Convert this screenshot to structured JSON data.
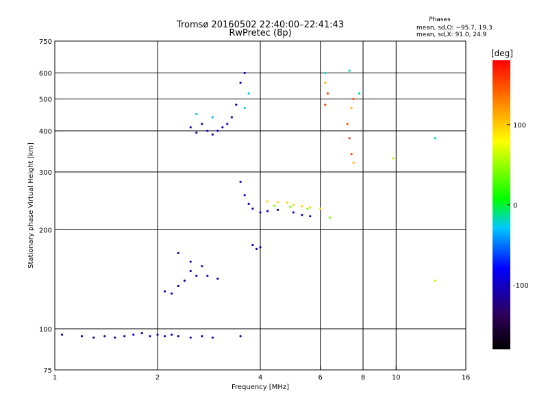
{
  "chart_data": {
    "type": "scatter",
    "title": "Tromsø 20160502 22:40:00–22:41:43",
    "subtitle": "RwPretec (8p)",
    "xlabel": "Frequency [MHz]",
    "ylabel": "Stationary phase Virtual Height [km]",
    "x_scale": "log",
    "y_scale": "log",
    "xlim": [
      1,
      16
    ],
    "ylim": [
      75,
      750
    ],
    "x_ticks": [
      1,
      2,
      4,
      6,
      8,
      10,
      16
    ],
    "x_tick_labels": [
      "1",
      "2",
      "4",
      "6",
      "8",
      "10",
      "16"
    ],
    "y_ticks": [
      75,
      100,
      200,
      300,
      400,
      500,
      600,
      750
    ],
    "y_tick_labels": [
      "75",
      "100",
      "200",
      "300",
      "400",
      "500",
      "600",
      "750"
    ],
    "grid": true,
    "stats": {
      "heading": "Phases",
      "line_o": "mean, sd,O: −95.7, 19.3",
      "line_x": "mean, sd,X:  91.0, 24.9"
    },
    "colorbar": {
      "label": "[deg]",
      "range": [
        -180,
        180
      ],
      "ticks": [
        100,
        0,
        -100
      ],
      "tick_labels": [
        "100",
        "0",
        "-100"
      ]
    },
    "series": [
      {
        "color_value": -100,
        "points": [
          [
            1.05,
            96
          ],
          [
            1.2,
            95
          ],
          [
            1.3,
            94
          ],
          [
            1.4,
            95
          ],
          [
            1.5,
            94
          ],
          [
            1.6,
            95
          ],
          [
            1.7,
            96
          ],
          [
            1.8,
            97
          ],
          [
            1.9,
            95
          ],
          [
            2.0,
            96
          ],
          [
            2.1,
            95
          ],
          [
            2.2,
            96
          ],
          [
            2.3,
            95
          ],
          [
            2.5,
            94
          ],
          [
            2.7,
            95
          ],
          [
            2.9,
            94
          ],
          [
            3.5,
            95
          ]
        ]
      },
      {
        "color_value": -105,
        "points": [
          [
            2.1,
            130
          ],
          [
            2.2,
            128
          ],
          [
            2.3,
            135
          ],
          [
            2.4,
            140
          ],
          [
            2.5,
            150
          ],
          [
            2.6,
            145
          ],
          [
            2.7,
            155
          ],
          [
            2.8,
            145
          ],
          [
            3.0,
            142
          ],
          [
            2.3,
            170
          ],
          [
            2.5,
            160
          ]
        ]
      },
      {
        "color_value": -100,
        "points": [
          [
            2.5,
            410
          ],
          [
            2.6,
            395
          ],
          [
            2.7,
            420
          ],
          [
            2.8,
            400
          ],
          [
            2.9,
            390
          ],
          [
            3.0,
            400
          ],
          [
            3.1,
            410
          ],
          [
            3.2,
            420
          ],
          [
            3.3,
            440
          ],
          [
            3.4,
            480
          ],
          [
            3.5,
            560
          ],
          [
            3.6,
            600
          ]
        ]
      },
      {
        "color_value": -30,
        "points": [
          [
            2.6,
            450
          ],
          [
            2.9,
            440
          ],
          [
            3.6,
            470
          ],
          [
            3.7,
            520
          ]
        ]
      },
      {
        "color_value": -95,
        "points": [
          [
            3.5,
            280
          ],
          [
            3.6,
            255
          ],
          [
            3.7,
            240
          ],
          [
            3.8,
            232
          ],
          [
            4.0,
            226
          ],
          [
            4.2,
            228
          ],
          [
            4.5,
            230
          ],
          [
            5.0,
            226
          ],
          [
            5.3,
            222
          ],
          [
            5.6,
            220
          ]
        ]
      },
      {
        "color_value": 95,
        "points": [
          [
            4.2,
            244
          ],
          [
            4.5,
            243
          ],
          [
            4.8,
            242
          ],
          [
            5.0,
            238
          ],
          [
            5.3,
            236
          ],
          [
            5.6,
            234
          ],
          [
            6.0,
            232
          ]
        ]
      },
      {
        "color_value": 40,
        "points": [
          [
            4.4,
            237
          ],
          [
            4.9,
            235
          ],
          [
            5.5,
            232
          ],
          [
            6.4,
            218
          ]
        ]
      },
      {
        "color_value": -90,
        "points": [
          [
            3.8,
            180
          ],
          [
            3.9,
            175
          ],
          [
            4.0,
            177
          ]
        ]
      },
      {
        "color_value": 150,
        "points": [
          [
            6.2,
            480
          ],
          [
            6.3,
            520
          ],
          [
            7.2,
            420
          ],
          [
            7.3,
            380
          ],
          [
            7.4,
            340
          ],
          [
            7.5,
            500
          ]
        ]
      },
      {
        "color_value": 110,
        "points": [
          [
            6.2,
            560
          ],
          [
            7.4,
            470
          ],
          [
            7.5,
            320
          ]
        ]
      },
      {
        "color_value": -20,
        "points": [
          [
            6.2,
            600
          ],
          [
            7.3,
            610
          ],
          [
            13.0,
            380
          ],
          [
            7.8,
            520
          ]
        ]
      },
      {
        "color_value": 60,
        "points": [
          [
            9.8,
            330
          ],
          [
            13.0,
            140
          ]
        ]
      }
    ]
  }
}
